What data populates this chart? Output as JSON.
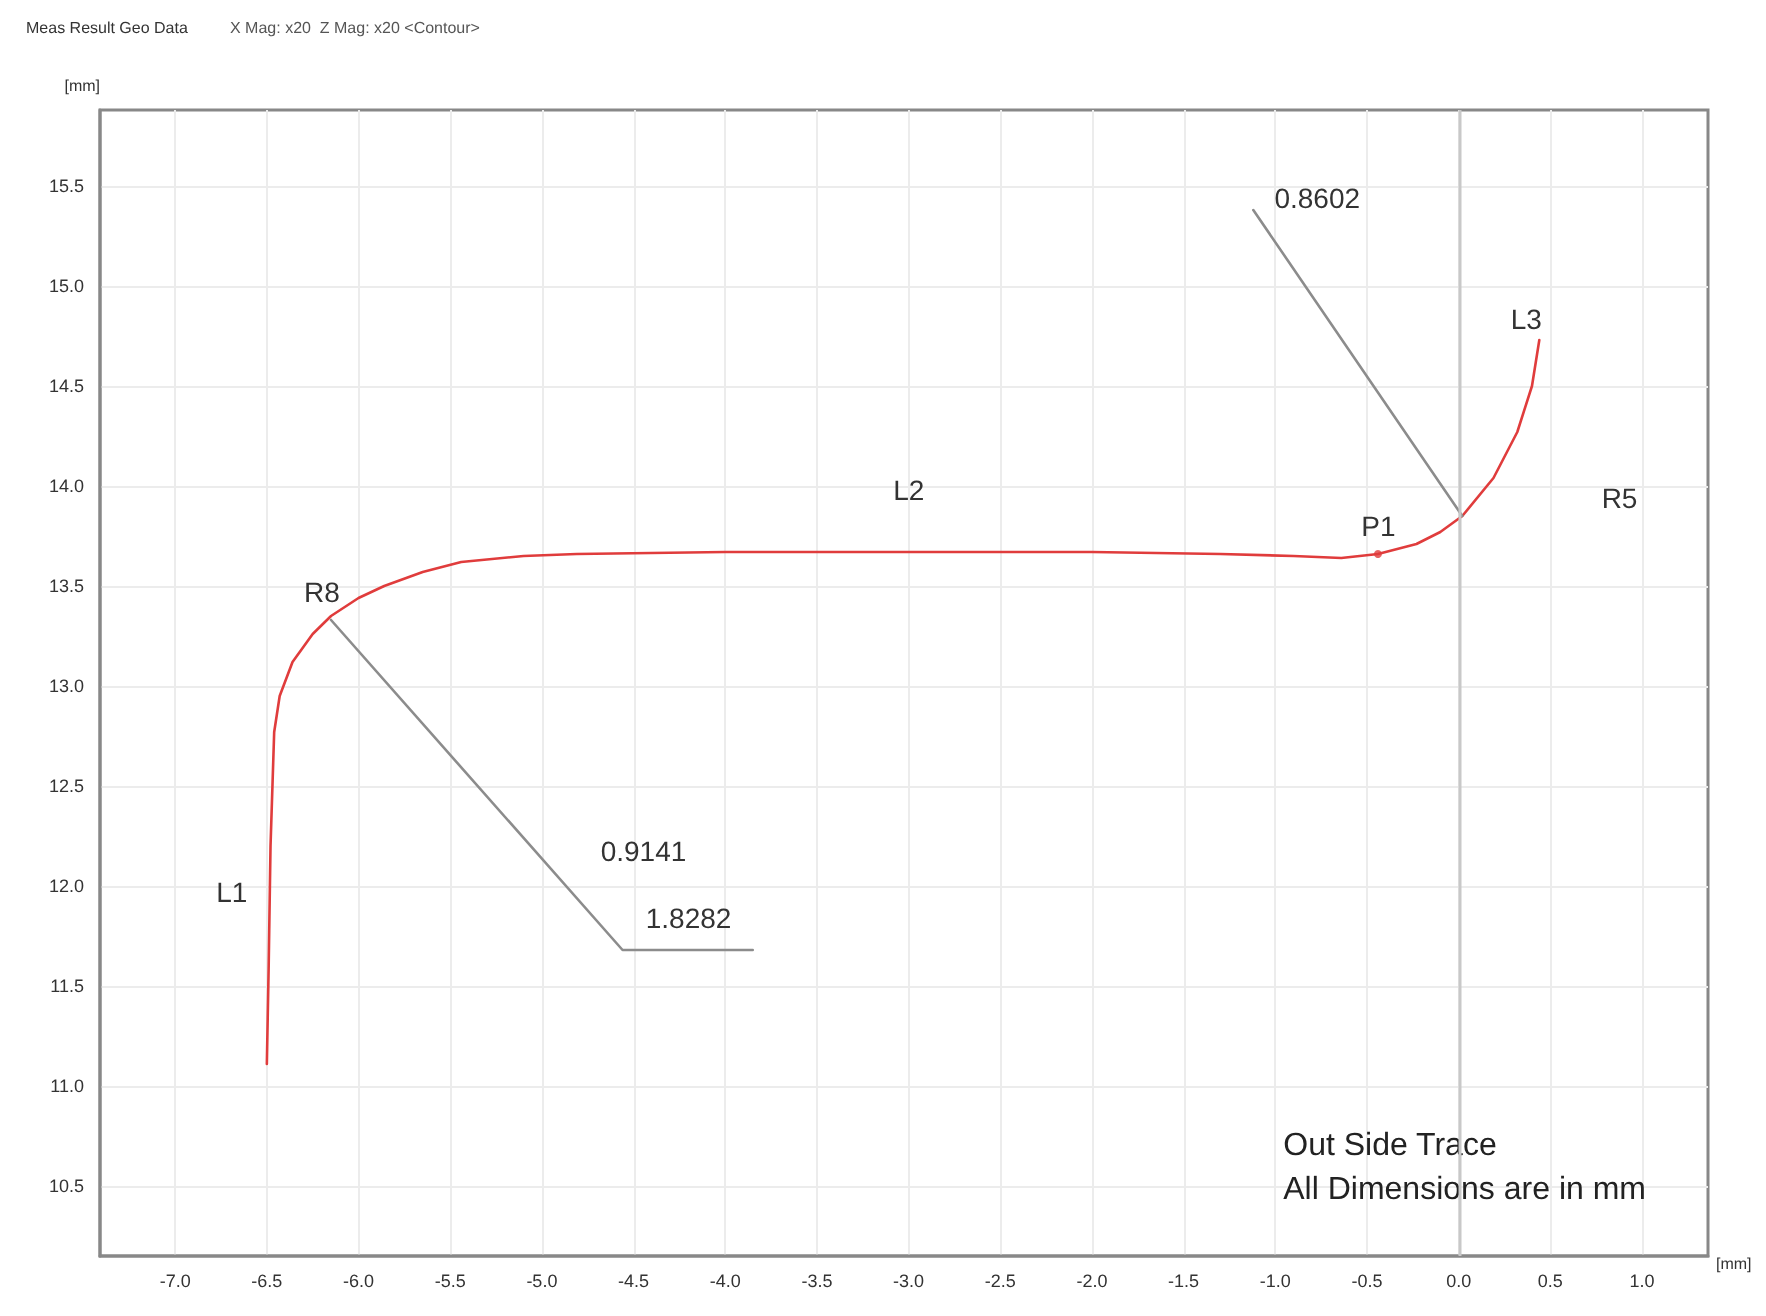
{
  "chart_data": {
    "type": "line",
    "title": "Meas Result Geo Data",
    "subtitle": "X Mag: x20  Z Mag: x20 <Contour>",
    "xlabel": "[mm]",
    "ylabel": "[mm]",
    "xlim": [
      -7.41,
      1.36
    ],
    "ylim": [
      10.15,
      15.88
    ],
    "xticks": [
      {
        "value": -7,
        "label": "-7.0"
      },
      {
        "value": -6.5,
        "label": "-6.5"
      },
      {
        "value": -6,
        "label": "-6.0"
      },
      {
        "value": -5.5,
        "label": "-5.5"
      },
      {
        "value": -5,
        "label": "-5.0"
      },
      {
        "value": -4.5,
        "label": "-4.5"
      },
      {
        "value": -4,
        "label": "-4.0"
      },
      {
        "value": -3.5,
        "label": "-3.5"
      },
      {
        "value": -3,
        "label": "-3.0"
      },
      {
        "value": -2.5,
        "label": "-2.5"
      },
      {
        "value": -2,
        "label": "-2.0"
      },
      {
        "value": -1.5,
        "label": "-1.5"
      },
      {
        "value": -1,
        "label": "-1.0"
      },
      {
        "value": -0.5,
        "label": "-0.5"
      },
      {
        "value": 0,
        "label": "0.0"
      },
      {
        "value": 0.5,
        "label": "0.5"
      },
      {
        "value": 1,
        "label": "1.0"
      }
    ],
    "yticks": [
      {
        "value": 10.5,
        "label": "10.5"
      },
      {
        "value": 11,
        "label": "11.0"
      },
      {
        "value": 11.5,
        "label": "11.5"
      },
      {
        "value": 12,
        "label": "12.0"
      },
      {
        "value": 12.5,
        "label": "12.5"
      },
      {
        "value": 13,
        "label": "13.0"
      },
      {
        "value": 13.5,
        "label": "13.5"
      },
      {
        "value": 14,
        "label": "14.0"
      },
      {
        "value": 14.5,
        "label": "14.5"
      },
      {
        "value": 15,
        "label": "15.0"
      },
      {
        "value": 15.5,
        "label": "15.5"
      }
    ],
    "grid": true,
    "marker": "none",
    "line_style": "solid",
    "series": [
      {
        "color": "#e03c3c",
        "x": [
          -6.5,
          -6.49,
          -6.48,
          -6.46,
          -6.43,
          -6.36,
          -6.25,
          -6.15,
          -6.0,
          -5.86,
          -5.65,
          -5.44,
          -5.1,
          -4.81,
          -4.0,
          -3.05,
          -2.0,
          -1.3,
          -0.9,
          -0.64,
          -0.44,
          -0.23,
          -0.1,
          0.02,
          0.19,
          0.32,
          0.4,
          0.44
        ],
        "values": [
          11.11,
          11.6,
          12.2,
          12.77,
          12.95,
          13.12,
          13.26,
          13.35,
          13.44,
          13.5,
          13.57,
          13.62,
          13.65,
          13.66,
          13.67,
          13.67,
          13.67,
          13.66,
          13.65,
          13.64,
          13.66,
          13.71,
          13.77,
          13.85,
          14.04,
          14.27,
          14.5,
          14.73
        ]
      },
      {
        "type": "scatter",
        "marker": "circle",
        "color": "#e03c3c",
        "x": [
          -0.44
        ],
        "values": [
          13.66
        ]
      },
      {
        "color": "#8c8c8c",
        "x": [
          -6.15,
          -4.56,
          -3.85
        ],
        "values": [
          13.33,
          11.68,
          11.68
        ]
      },
      {
        "color": "#8c8c8c",
        "x": [
          -1.12,
          0.02
        ],
        "values": [
          15.38,
          13.85
        ]
      }
    ],
    "ref_lines": [
      {
        "axis": "x",
        "value": 0,
        "color": "#c8c8c8"
      }
    ],
    "annotations": [
      "L1",
      "R8",
      "0.9141",
      "1.8282",
      "L2",
      "P1",
      "0.8602",
      "L3",
      "R5",
      "Out Side Trace",
      "All Dimensions are in mm"
    ]
  }
}
